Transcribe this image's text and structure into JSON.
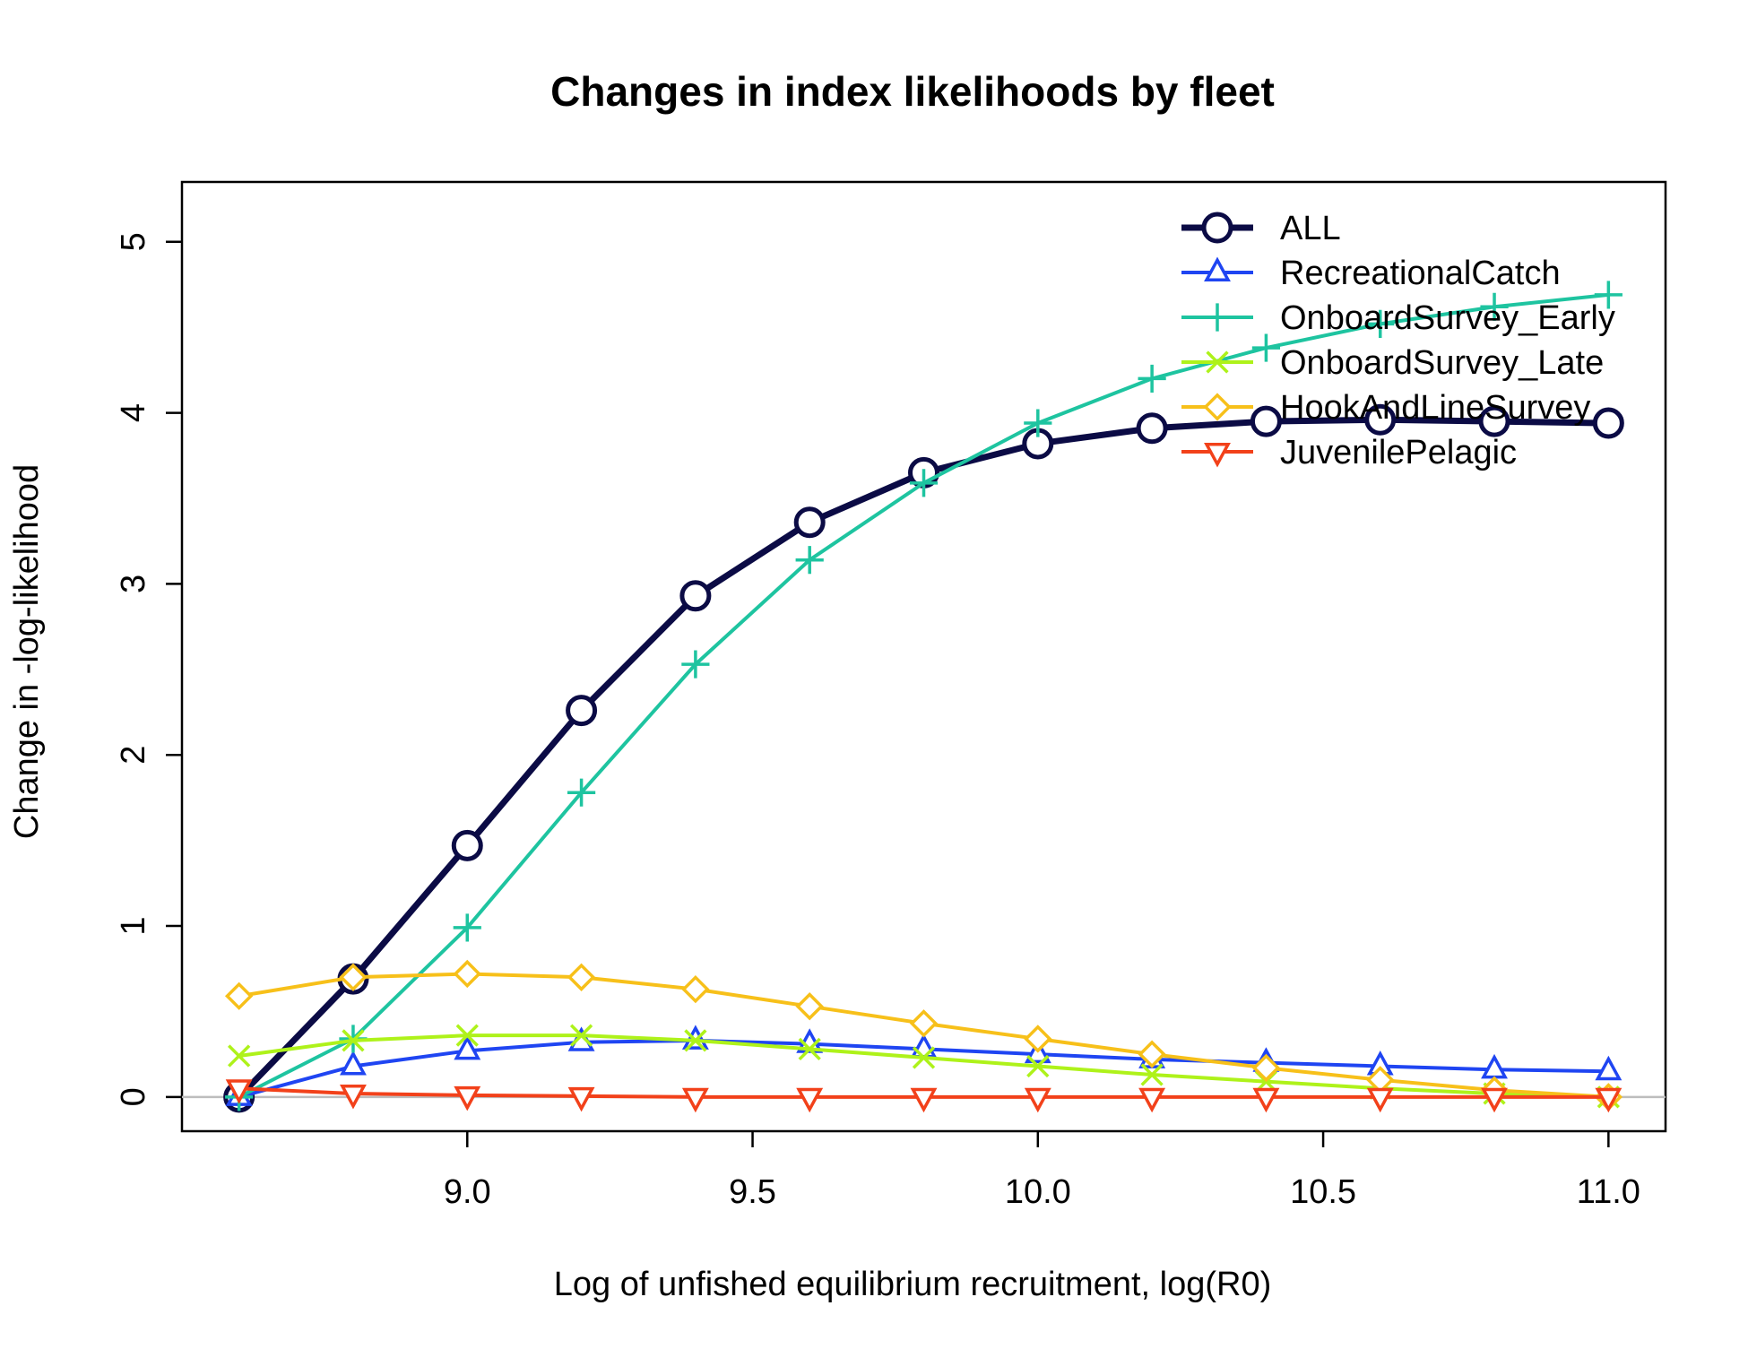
{
  "chart_data": {
    "type": "line",
    "title": "Changes in index likelihoods by fleet",
    "xlabel": "Log of unfished equilibrium recruitment, log(R0)",
    "ylabel": "Change in -log-likelihood",
    "x": [
      8.6,
      8.8,
      9.0,
      9.2,
      9.4,
      9.6,
      9.8,
      10.0,
      10.2,
      10.4,
      10.6,
      10.8,
      11.0
    ],
    "xlim": [
      8.5,
      11.1
    ],
    "ylim": [
      -0.2,
      5.35
    ],
    "x_ticks": [
      9.0,
      9.5,
      10.0,
      10.5,
      11.0
    ],
    "x_tick_labels": [
      "9.0",
      "9.5",
      "10.0",
      "10.5",
      "11.0"
    ],
    "y_ticks": [
      0,
      1,
      2,
      3,
      4,
      5
    ],
    "y_tick_labels": [
      "0",
      "1",
      "2",
      "3",
      "4",
      "5"
    ],
    "reference_line_y": 0,
    "legend_position": "top-right",
    "grid": false,
    "series": [
      {
        "name": "ALL",
        "color": "#0b0b45",
        "marker": "circle",
        "values": [
          0.0,
          0.69,
          1.47,
          2.26,
          2.93,
          3.36,
          3.65,
          3.82,
          3.91,
          3.95,
          3.96,
          3.95,
          3.94
        ]
      },
      {
        "name": "RecreationalCatch",
        "color": "#1f45f2",
        "marker": "triangle-up",
        "values": [
          0.0,
          0.18,
          0.27,
          0.32,
          0.33,
          0.31,
          0.28,
          0.25,
          0.22,
          0.2,
          0.18,
          0.16,
          0.15
        ]
      },
      {
        "name": "OnboardSurvey_Early",
        "color": "#1ec4a0",
        "marker": "plus",
        "values": [
          0.0,
          0.34,
          0.99,
          1.78,
          2.53,
          3.14,
          3.59,
          3.94,
          4.2,
          4.38,
          4.52,
          4.62,
          4.69
        ]
      },
      {
        "name": "OnboardSurvey_Late",
        "color": "#aef21a",
        "marker": "x",
        "values": [
          0.24,
          0.33,
          0.36,
          0.36,
          0.33,
          0.28,
          0.23,
          0.18,
          0.13,
          0.09,
          0.05,
          0.02,
          0.0
        ]
      },
      {
        "name": "HookAndLineSurvey",
        "color": "#f7c01a",
        "marker": "diamond",
        "values": [
          0.59,
          0.7,
          0.72,
          0.7,
          0.63,
          0.53,
          0.43,
          0.34,
          0.25,
          0.17,
          0.1,
          0.04,
          0.0
        ]
      },
      {
        "name": "JuvenilePelagic",
        "color": "#f2411a",
        "marker": "triangle-down",
        "values": [
          0.05,
          0.02,
          0.01,
          0.005,
          0.0,
          0.0,
          0.0,
          0.0,
          0.0,
          0.0,
          0.0,
          0.0,
          0.0
        ]
      }
    ]
  }
}
